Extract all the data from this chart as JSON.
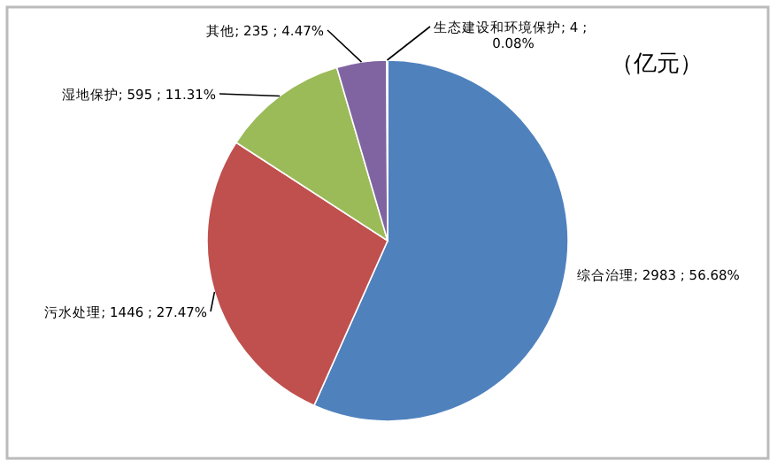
{
  "chart_data": {
    "type": "pie",
    "categories": [
      "综合治理",
      "污水处理",
      "湿地保护",
      "其他",
      "生态建设和环境保护"
    ],
    "values": [
      2983,
      1446,
      595,
      235,
      4
    ],
    "value_labels": [
      "2983 ; 56.68%",
      "1446 ; 27.47%",
      "595 ; 11.31%",
      "235 ; 4.47%",
      "4 ;\n0.08%"
    ],
    "colors": [
      "#4f81bd",
      "#c0504d",
      "#9bbb59",
      "#8064a2",
      "#4bacc6"
    ],
    "annotations": [
      "（亿元）"
    ]
  }
}
